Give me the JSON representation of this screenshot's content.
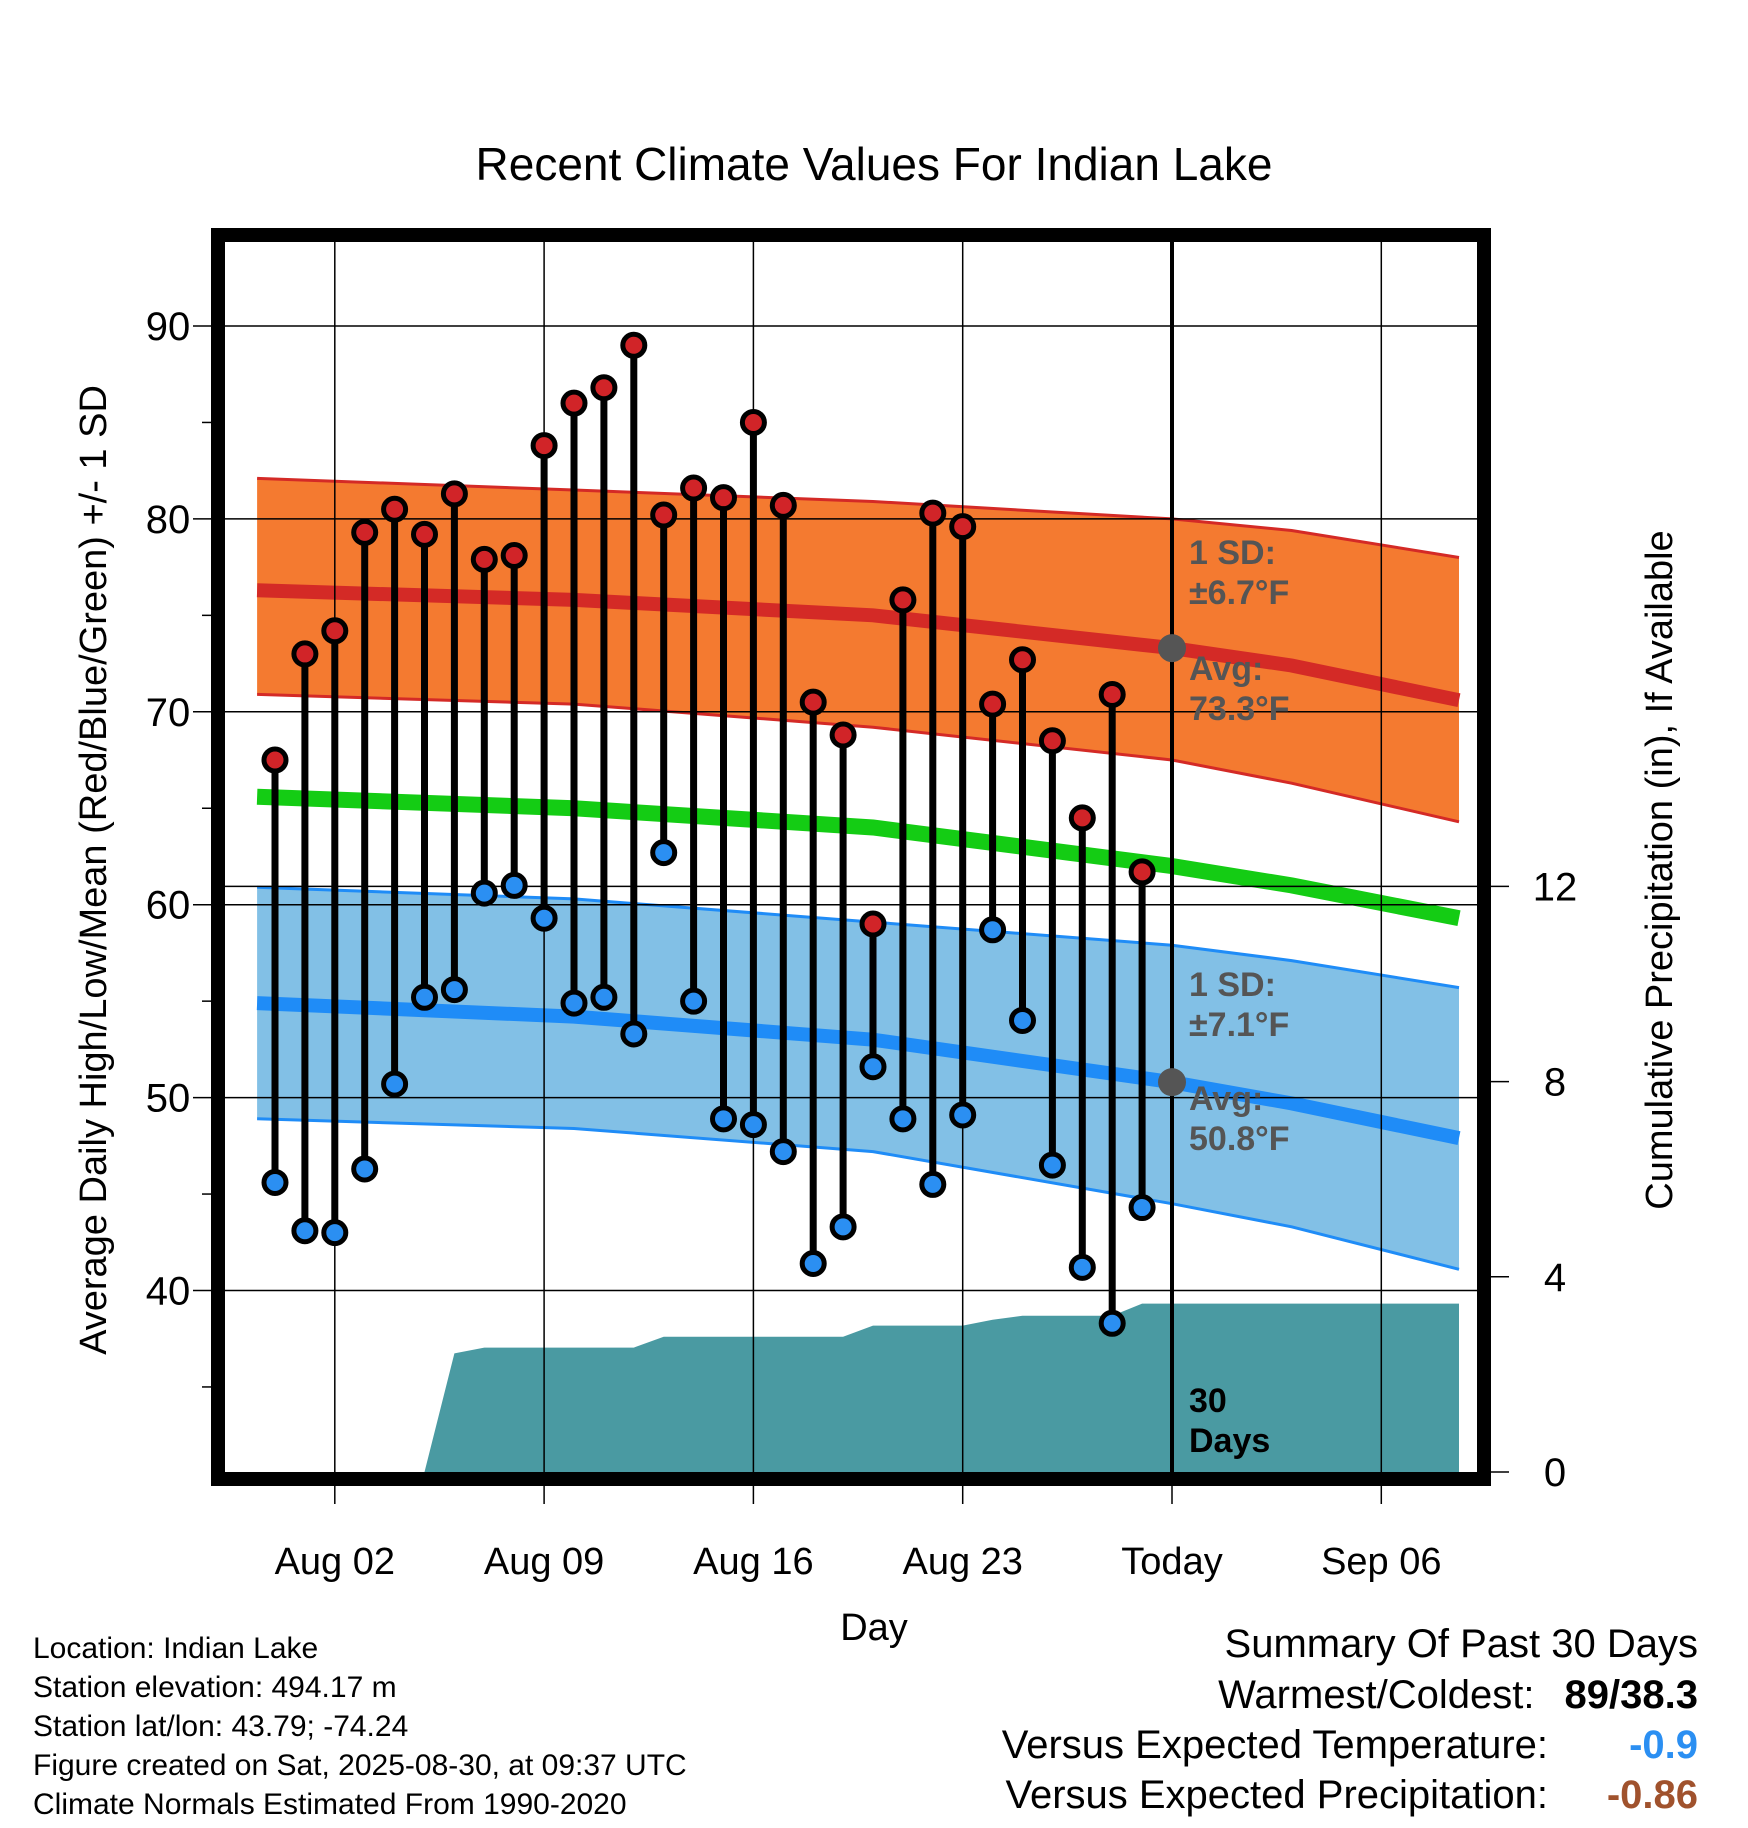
{
  "chart_data": {
    "type": "line",
    "title": "Recent Climate Values For Indian Lake",
    "xlabel": "Day",
    "ylabel_left": "Average Daily High/Low/Mean (Red/Blue/Green) +/- 1 SD",
    "ylabel_right": "Cumulative Precipitation (in), If Available",
    "x_tick_labels": [
      "Aug 02",
      "Aug 09",
      "Aug 16",
      "Aug 23",
      "Today",
      "Sep 06"
    ],
    "x_tick_days": [
      2,
      9,
      16,
      23,
      30,
      37
    ],
    "xlim": [
      -0.6,
      39.6
    ],
    "today_day": 30,
    "today_label": [
      "30",
      "Days"
    ],
    "y_left_ticks": [
      40,
      50,
      60,
      70,
      80,
      90
    ],
    "ylim_left": [
      30.8,
      94.2
    ],
    "y_right_ticks": [
      0,
      4,
      8,
      12
    ],
    "ylim_right": [
      0,
      32
    ],
    "grid": true,
    "days": [
      0,
      1,
      2,
      3,
      4,
      5,
      6,
      7,
      8,
      9,
      10,
      11,
      12,
      13,
      14,
      15,
      16,
      17,
      18,
      19,
      20,
      21,
      22,
      23,
      24,
      25,
      26,
      27,
      28,
      29
    ],
    "daily_high": [
      67.5,
      73.0,
      74.2,
      79.3,
      80.5,
      79.2,
      81.3,
      77.9,
      78.1,
      83.8,
      86.0,
      86.8,
      89.0,
      80.2,
      81.6,
      81.1,
      85.0,
      80.7,
      70.5,
      68.8,
      59.0,
      75.8,
      80.3,
      79.6,
      70.4,
      72.7,
      68.5,
      64.5,
      70.9,
      61.7
    ],
    "daily_low": [
      45.6,
      43.1,
      43.0,
      46.3,
      50.7,
      55.2,
      55.6,
      60.6,
      61.0,
      59.3,
      54.9,
      55.2,
      53.3,
      62.7,
      55.0,
      48.9,
      48.6,
      47.2,
      41.4,
      43.3,
      51.6,
      48.9,
      45.5,
      49.1,
      58.7,
      54.0,
      46.5,
      41.2,
      38.3,
      44.3
    ],
    "normal_high": {
      "days": [
        -0.6,
        10,
        20,
        30,
        34,
        39.6
      ],
      "mean": [
        76.3,
        75.8,
        75.0,
        73.3,
        72.4,
        70.6
      ],
      "upper": [
        82.1,
        81.5,
        80.9,
        80.0,
        79.4,
        78.0
      ],
      "lower": [
        70.9,
        70.4,
        69.2,
        67.5,
        66.3,
        64.3
      ]
    },
    "normal_mean": {
      "days": [
        -0.6,
        10,
        20,
        30,
        34,
        39.6
      ],
      "values": [
        65.6,
        65.0,
        64.0,
        62.0,
        61.0,
        59.3
      ]
    },
    "normal_low": {
      "days": [
        -0.6,
        10,
        20,
        30,
        34,
        39.6
      ],
      "mean": [
        54.9,
        54.2,
        53.0,
        50.8,
        49.7,
        47.9
      ],
      "upper": [
        60.9,
        60.3,
        59.1,
        57.9,
        57.1,
        55.7
      ],
      "lower": [
        48.9,
        48.4,
        47.2,
        44.5,
        43.3,
        41.1
      ]
    },
    "sd_high_label": [
      "1 SD:",
      "±6.7°F"
    ],
    "avg_high_label": [
      "Avg:",
      "73.3°F"
    ],
    "sd_low_label": [
      "1 SD:",
      "±7.1°F"
    ],
    "avg_low_label": [
      "Avg:",
      "50.8°F"
    ],
    "precip_cumulative": {
      "days": [
        5.0,
        6.0,
        7.0,
        8.0,
        9.0,
        10.0,
        11.0,
        12.0,
        13.0,
        14.0,
        15.0,
        16.0,
        17.0,
        18.0,
        19.0,
        20.0,
        21.0,
        22.0,
        23.0,
        24.0,
        25.0,
        26.0,
        27.0,
        28.0,
        29.0,
        39.6
      ],
      "values": [
        0.0,
        2.43,
        2.55,
        2.55,
        2.55,
        2.55,
        2.55,
        2.55,
        2.77,
        2.77,
        2.77,
        2.77,
        2.77,
        2.77,
        2.77,
        3.0,
        3.0,
        3.0,
        3.0,
        3.12,
        3.2,
        3.2,
        3.2,
        3.2,
        3.45,
        3.45
      ]
    },
    "colors": {
      "high_band": "#f47a30",
      "high_line": "#d42a26",
      "mean_line": "#14cc14",
      "low_band": "#82c0e6",
      "low_line": "#1f8cf7",
      "precip": "#4a9aa2",
      "high_dot": "#d12428",
      "low_dot": "#2b8ff2",
      "avg_dot": "#555555",
      "label_gray": "#555555"
    }
  },
  "info": {
    "location": "Location: Indian Lake",
    "elevation": "Station elevation: 494.17 m",
    "latlon": "Station lat/lon: 43.79; -74.24",
    "created": "Figure created on Sat, 2025-08-30, at 09:37 UTC",
    "normals": "Climate Normals Estimated From 1990-2020"
  },
  "summary": {
    "heading": "Summary Of Past 30 Days",
    "warmest_coldest_label": "Warmest/Coldest:",
    "warmest_coldest_value": "89/38.3",
    "temp_label": "Versus Expected Temperature:",
    "temp_value": "-0.9",
    "temp_color": "#2b8ff2",
    "precip_label": "Versus Expected Precipitation:",
    "precip_value": "-0.86",
    "precip_color": "#a0522d"
  }
}
